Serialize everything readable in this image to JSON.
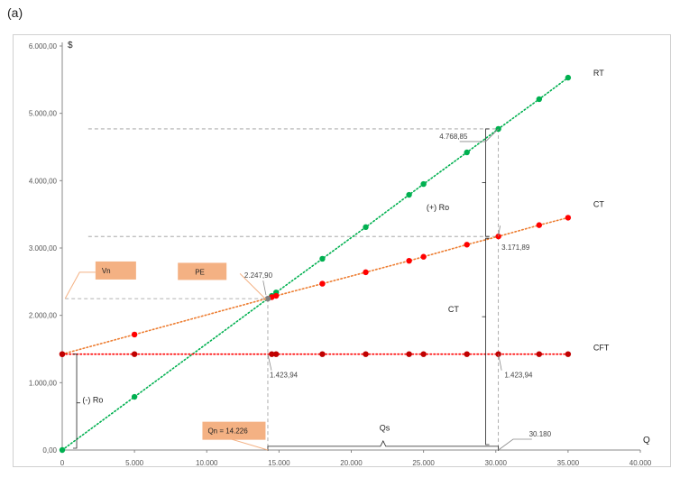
{
  "panel_label": "(a)",
  "chart_data": {
    "type": "line",
    "xlabel": "Q",
    "ylabel": "$",
    "xlim": [
      0,
      40000
    ],
    "ylim": [
      0,
      6000
    ],
    "x_ticks": [
      {
        "v": 0,
        "label": "0"
      },
      {
        "v": 5000,
        "label": "5.000"
      },
      {
        "v": 10000,
        "label": "10.000"
      },
      {
        "v": 15000,
        "label": "15.000"
      },
      {
        "v": 20000,
        "label": "20.000"
      },
      {
        "v": 25000,
        "label": "25.000"
      },
      {
        "v": 30000,
        "label": "30.000"
      },
      {
        "v": 35000,
        "label": "35.000"
      },
      {
        "v": 40000,
        "label": "40.000"
      }
    ],
    "y_ticks": [
      {
        "v": 0,
        "label": "0,00"
      },
      {
        "v": 1000,
        "label": "1.000,00"
      },
      {
        "v": 2000,
        "label": "2.000,00"
      },
      {
        "v": 3000,
        "label": "3.000,00"
      },
      {
        "v": 4000,
        "label": "4.000,00"
      },
      {
        "v": 5000,
        "label": "5.000,00"
      },
      {
        "v": 6000,
        "label": "6.000,00"
      }
    ],
    "grid": false,
    "series": [
      {
        "name": "RT",
        "color": "#00b050",
        "line_color": "#00b050",
        "points": [
          [
            0,
            0
          ],
          [
            5000,
            790
          ],
          [
            14500,
            2290
          ],
          [
            14800,
            2340
          ],
          [
            18000,
            2840
          ],
          [
            21000,
            3310
          ],
          [
            24000,
            3790
          ],
          [
            25000,
            3950
          ],
          [
            28000,
            4420
          ],
          [
            30180,
            4768.85
          ],
          [
            33000,
            5210
          ],
          [
            35000,
            5530
          ]
        ]
      },
      {
        "name": "CT",
        "color": "#ff0000",
        "line_color": "#ed7d31",
        "points": [
          [
            0,
            1423.94
          ],
          [
            5000,
            1715
          ],
          [
            14500,
            2270
          ],
          [
            14800,
            2290
          ],
          [
            18000,
            2470
          ],
          [
            21000,
            2640
          ],
          [
            24000,
            2810
          ],
          [
            25000,
            2870
          ],
          [
            28000,
            3050
          ],
          [
            30180,
            3171.89
          ],
          [
            33000,
            3340
          ],
          [
            35000,
            3450
          ]
        ]
      },
      {
        "name": "CFT",
        "color": "#c00000",
        "line_color": "#ff0000",
        "points": [
          [
            0,
            1423.94
          ],
          [
            5000,
            1423.94
          ],
          [
            14500,
            1423.94
          ],
          [
            14800,
            1423.94
          ],
          [
            18000,
            1423.94
          ],
          [
            21000,
            1423.94
          ],
          [
            24000,
            1423.94
          ],
          [
            25000,
            1423.94
          ],
          [
            28000,
            1423.94
          ],
          [
            30180,
            1423.94
          ],
          [
            33000,
            1423.94
          ],
          [
            35000,
            1423.94
          ]
        ]
      }
    ],
    "annotations": {
      "rt_high": "4.768,85",
      "ct_high": "3.171,89",
      "pe_value": "2.247,90",
      "cft_left": "1.423,94",
      "cft_right": "1.423,94",
      "q_high": "30.180",
      "plus_ro": "(+) Ro",
      "minus_ro": "(-) Ro",
      "ct_brace": "CT",
      "qs": "Qs"
    },
    "boxes": {
      "vn": "Vn",
      "pe": "PE",
      "qn": "Qn = 14.226"
    },
    "box_color": "#f4b183"
  }
}
